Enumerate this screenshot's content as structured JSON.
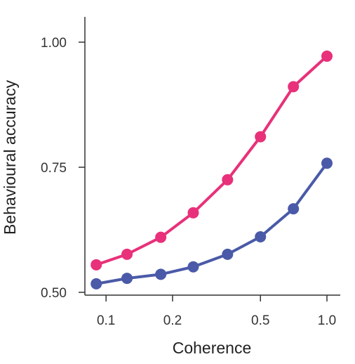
{
  "chart_data": {
    "type": "line",
    "xlabel": "Coherence",
    "ylabel": "Behavioural accuracy",
    "x_scale": "log",
    "xlim": [
      0.0802,
      1.0
    ],
    "ylim": [
      0.5,
      1.05
    ],
    "x_ticks": [
      0.1,
      0.2,
      0.5,
      1.0
    ],
    "x_tick_labels": [
      "0.1",
      "0.2",
      "0.5",
      "1.0"
    ],
    "y_ticks": [
      0.5,
      0.75,
      1.0
    ],
    "y_tick_labels": [
      "0.50",
      "0.75",
      "1.00"
    ],
    "grid": false,
    "x": [
      0.0903,
      0.1244,
      0.1769,
      0.2482,
      0.3548,
      0.5,
      0.7049,
      1.0
    ],
    "series": [
      {
        "color": "#e8317a",
        "values": [
          0.555,
          0.576,
          0.61,
          0.659,
          0.725,
          0.811,
          0.911,
          0.972
        ]
      },
      {
        "color": "#4a5aa8",
        "values": [
          0.517,
          0.528,
          0.536,
          0.551,
          0.576,
          0.611,
          0.667,
          0.758
        ]
      }
    ]
  }
}
